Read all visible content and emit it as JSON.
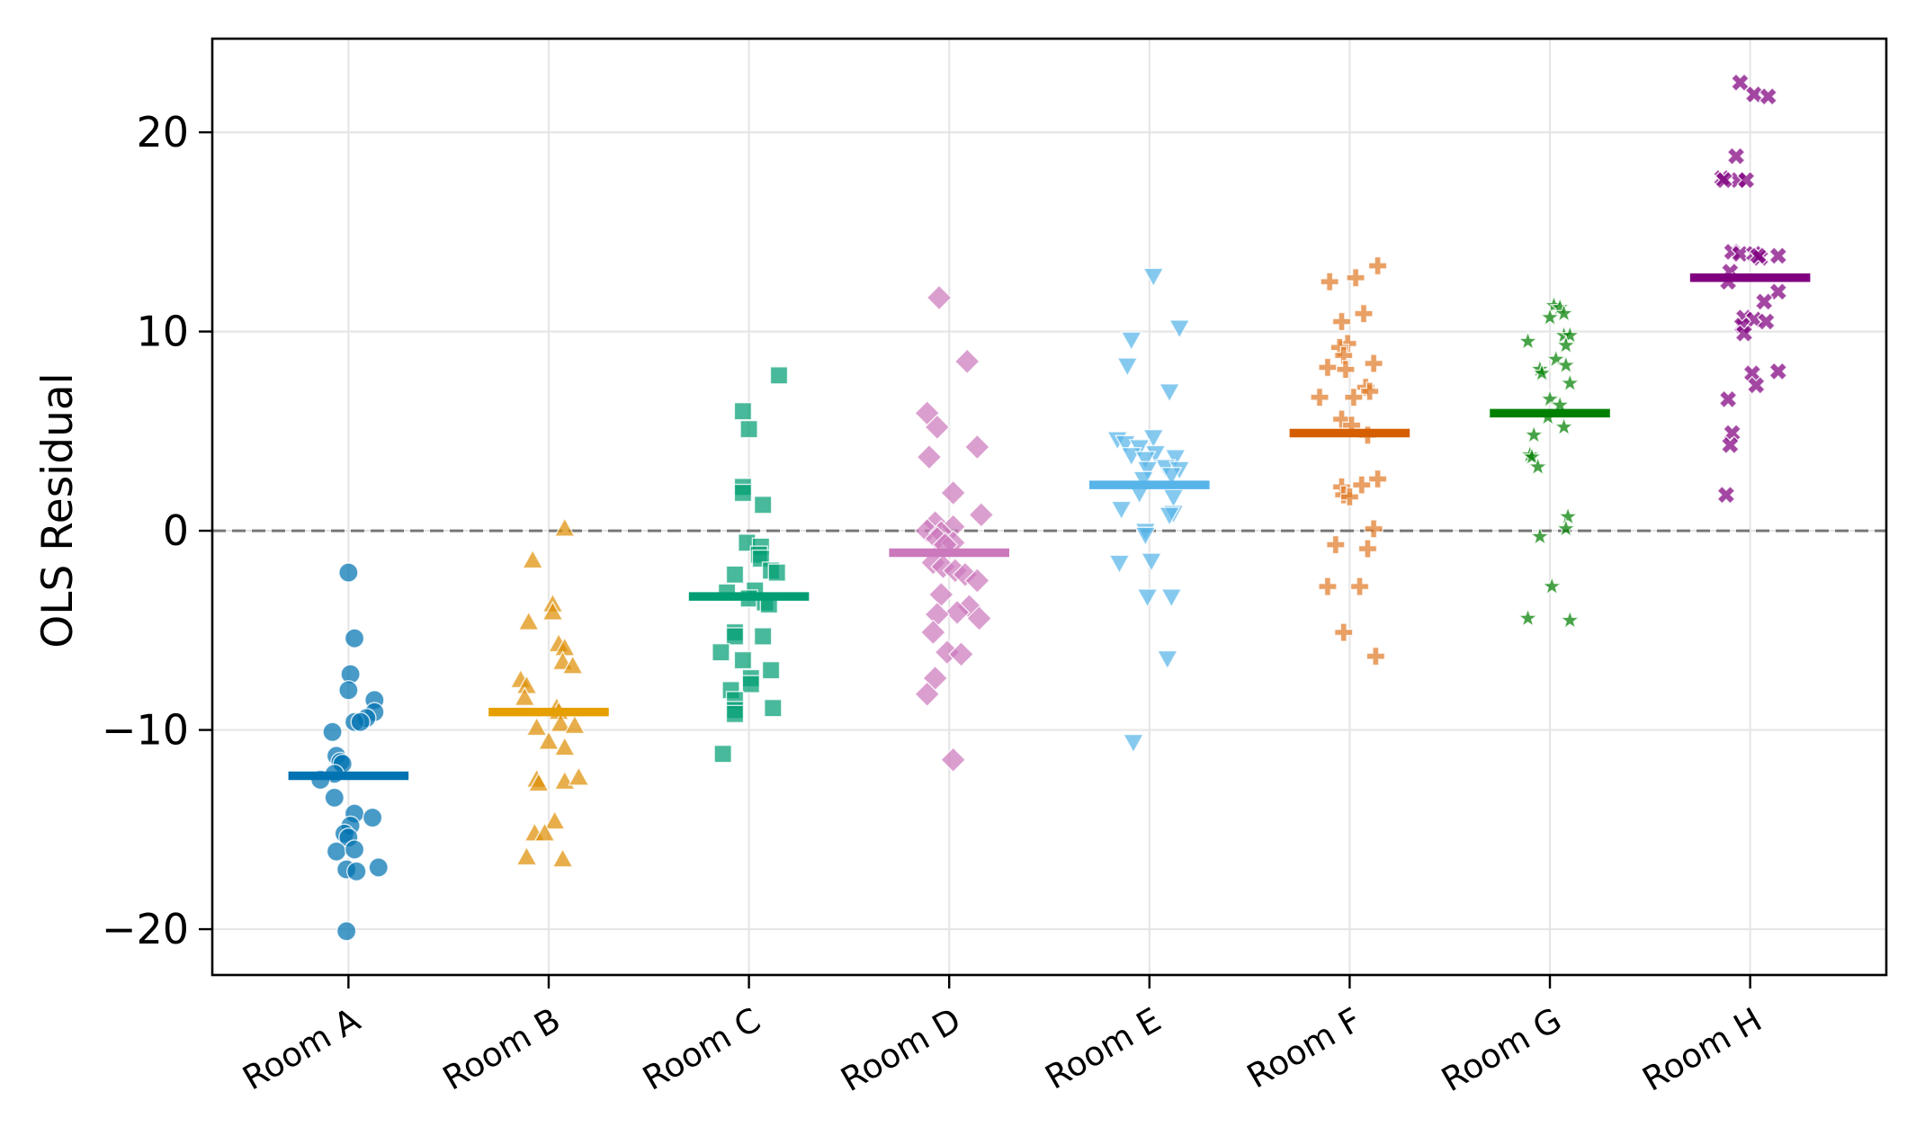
{
  "chart_data": {
    "type": "scatter",
    "subtype": "strip plot with group means",
    "title": "",
    "xlabel": "",
    "ylabel": "OLS Residual",
    "categories": [
      "Room A",
      "Room B",
      "Room C",
      "Room D",
      "Room E",
      "Room F",
      "Room G",
      "Room H"
    ],
    "ylim": [
      -22.3,
      24.7
    ],
    "yticks": [
      -20,
      -10,
      0,
      10,
      20
    ],
    "ytick_labels": [
      "−20",
      "−10",
      "0",
      "10",
      "20"
    ],
    "grid": true,
    "reference_line": {
      "y": 0,
      "style": "dashed",
      "color": "#777777"
    },
    "legend": "none",
    "series": [
      {
        "name": "Room A",
        "marker": "circle",
        "color": "#0173b2",
        "mean_color": "#0173b2",
        "mean": -12.3,
        "points": [
          {
            "dx": -0.0,
            "y": -2.1
          },
          {
            "dx": 0.03,
            "y": -5.4
          },
          {
            "dx": 0.01,
            "y": -7.2
          },
          {
            "dx": 0.0,
            "y": -8.0
          },
          {
            "dx": 0.13,
            "y": -8.5
          },
          {
            "dx": 0.13,
            "y": -9.1
          },
          {
            "dx": 0.09,
            "y": -9.4
          },
          {
            "dx": 0.03,
            "y": -9.6
          },
          {
            "dx": 0.06,
            "y": -9.6
          },
          {
            "dx": -0.08,
            "y": -10.1
          },
          {
            "dx": -0.06,
            "y": -11.3
          },
          {
            "dx": -0.04,
            "y": -11.6
          },
          {
            "dx": -0.03,
            "y": -11.7
          },
          {
            "dx": -0.07,
            "y": -12.2
          },
          {
            "dx": -0.14,
            "y": -12.5
          },
          {
            "dx": -0.07,
            "y": -13.4
          },
          {
            "dx": 0.03,
            "y": -14.2
          },
          {
            "dx": 0.12,
            "y": -14.4
          },
          {
            "dx": 0.01,
            "y": -14.8
          },
          {
            "dx": -0.02,
            "y": -15.2
          },
          {
            "dx": 0.0,
            "y": -15.4
          },
          {
            "dx": -0.06,
            "y": -16.1
          },
          {
            "dx": 0.03,
            "y": -16.0
          },
          {
            "dx": -0.01,
            "y": -17.0
          },
          {
            "dx": 0.04,
            "y": -17.1
          },
          {
            "dx": 0.15,
            "y": -16.9
          },
          {
            "dx": -0.01,
            "y": -20.1
          }
        ]
      },
      {
        "name": "Room B",
        "marker": "triangle-up",
        "color": "#de8f05",
        "mean_color": "#e69f00",
        "mean": -9.1,
        "points": [
          {
            "dx": 0.08,
            "y": 0.1
          },
          {
            "dx": -0.08,
            "y": -1.5
          },
          {
            "dx": 0.02,
            "y": -3.7
          },
          {
            "dx": 0.02,
            "y": -4.1
          },
          {
            "dx": -0.1,
            "y": -4.6
          },
          {
            "dx": 0.05,
            "y": -5.7
          },
          {
            "dx": 0.08,
            "y": -5.9
          },
          {
            "dx": 0.07,
            "y": -6.6
          },
          {
            "dx": 0.12,
            "y": -6.8
          },
          {
            "dx": -0.14,
            "y": -7.5
          },
          {
            "dx": -0.11,
            "y": -7.8
          },
          {
            "dx": -0.12,
            "y": -8.4
          },
          {
            "dx": 0.04,
            "y": -8.9
          },
          {
            "dx": 0.05,
            "y": -9.1
          },
          {
            "dx": 0.06,
            "y": -9.7
          },
          {
            "dx": 0.13,
            "y": -9.8
          },
          {
            "dx": -0.06,
            "y": -9.9
          },
          {
            "dx": 0.0,
            "y": -10.6
          },
          {
            "dx": 0.08,
            "y": -10.9
          },
          {
            "dx": -0.06,
            "y": -12.5
          },
          {
            "dx": -0.05,
            "y": -12.7
          },
          {
            "dx": 0.08,
            "y": -12.6
          },
          {
            "dx": 0.15,
            "y": -12.4
          },
          {
            "dx": 0.03,
            "y": -14.6
          },
          {
            "dx": -0.07,
            "y": -15.2
          },
          {
            "dx": -0.02,
            "y": -15.2
          },
          {
            "dx": -0.11,
            "y": -16.4
          },
          {
            "dx": 0.07,
            "y": -16.5
          }
        ]
      },
      {
        "name": "Room C",
        "marker": "square",
        "color": "#029e73",
        "mean_color": "#029e73",
        "mean": -3.3,
        "points": [
          {
            "dx": 0.15,
            "y": 7.8
          },
          {
            "dx": -0.03,
            "y": 6.0
          },
          {
            "dx": 0.0,
            "y": 5.1
          },
          {
            "dx": -0.03,
            "y": 2.2
          },
          {
            "dx": -0.03,
            "y": 1.9
          },
          {
            "dx": 0.07,
            "y": 1.3
          },
          {
            "dx": -0.01,
            "y": -0.6
          },
          {
            "dx": 0.06,
            "y": -0.8
          },
          {
            "dx": 0.05,
            "y": -1.2
          },
          {
            "dx": 0.06,
            "y": -1.4
          },
          {
            "dx": 0.11,
            "y": -2.0
          },
          {
            "dx": 0.14,
            "y": -2.1
          },
          {
            "dx": -0.07,
            "y": -2.2
          },
          {
            "dx": 0.03,
            "y": -3.0
          },
          {
            "dx": -0.11,
            "y": -3.1
          },
          {
            "dx": 0.0,
            "y": -3.4
          },
          {
            "dx": 0.08,
            "y": -3.6
          },
          {
            "dx": 0.1,
            "y": -3.7
          },
          {
            "dx": -0.07,
            "y": -5.1
          },
          {
            "dx": -0.07,
            "y": -5.3
          },
          {
            "dx": 0.07,
            "y": -5.3
          },
          {
            "dx": -0.14,
            "y": -6.1
          },
          {
            "dx": -0.03,
            "y": -6.5
          },
          {
            "dx": 0.11,
            "y": -7.0
          },
          {
            "dx": 0.01,
            "y": -7.4
          },
          {
            "dx": 0.01,
            "y": -7.7
          },
          {
            "dx": -0.09,
            "y": -8.0
          },
          {
            "dx": -0.07,
            "y": -8.5
          },
          {
            "dx": -0.07,
            "y": -9.0
          },
          {
            "dx": -0.07,
            "y": -9.2
          },
          {
            "dx": 0.12,
            "y": -8.9
          },
          {
            "dx": -0.13,
            "y": -11.2
          }
        ]
      },
      {
        "name": "Room D",
        "marker": "diamond",
        "color": "#cc78bc",
        "mean_color": "#cc78bc",
        "mean": -1.1,
        "points": [
          {
            "dx": -0.05,
            "y": 11.7
          },
          {
            "dx": 0.09,
            "y": 8.5
          },
          {
            "dx": -0.11,
            "y": 5.9
          },
          {
            "dx": -0.06,
            "y": 5.2
          },
          {
            "dx": 0.14,
            "y": 4.2
          },
          {
            "dx": -0.1,
            "y": 3.7
          },
          {
            "dx": 0.02,
            "y": 1.9
          },
          {
            "dx": 0.16,
            "y": 0.8
          },
          {
            "dx": -0.07,
            "y": 0.4
          },
          {
            "dx": 0.02,
            "y": 0.2
          },
          {
            "dx": -0.11,
            "y": 0.0
          },
          {
            "dx": -0.04,
            "y": -0.1
          },
          {
            "dx": -0.06,
            "y": -0.4
          },
          {
            "dx": 0.02,
            "y": -0.6
          },
          {
            "dx": -0.02,
            "y": -0.7
          },
          {
            "dx": -0.08,
            "y": -1.6
          },
          {
            "dx": -0.03,
            "y": -1.8
          },
          {
            "dx": 0.03,
            "y": -2.0
          },
          {
            "dx": 0.08,
            "y": -2.2
          },
          {
            "dx": 0.14,
            "y": -2.5
          },
          {
            "dx": -0.04,
            "y": -3.2
          },
          {
            "dx": 0.1,
            "y": -3.8
          },
          {
            "dx": 0.04,
            "y": -4.1
          },
          {
            "dx": -0.06,
            "y": -4.2
          },
          {
            "dx": 0.15,
            "y": -4.4
          },
          {
            "dx": -0.08,
            "y": -5.1
          },
          {
            "dx": -0.01,
            "y": -6.1
          },
          {
            "dx": 0.06,
            "y": -6.2
          },
          {
            "dx": -0.07,
            "y": -7.4
          },
          {
            "dx": -0.11,
            "y": -8.2
          },
          {
            "dx": 0.02,
            "y": -11.5
          }
        ]
      },
      {
        "name": "Room E",
        "marker": "triangle-down",
        "color": "#56b4e9",
        "mean_color": "#56b4e9",
        "mean": 2.3,
        "points": [
          {
            "dx": 0.02,
            "y": 12.8
          },
          {
            "dx": 0.15,
            "y": 10.2
          },
          {
            "dx": -0.09,
            "y": 9.6
          },
          {
            "dx": -0.11,
            "y": 8.3
          },
          {
            "dx": 0.1,
            "y": 7.0
          },
          {
            "dx": -0.16,
            "y": 4.6
          },
          {
            "dx": 0.02,
            "y": 4.7
          },
          {
            "dx": -0.12,
            "y": 4.4
          },
          {
            "dx": -0.05,
            "y": 4.2
          },
          {
            "dx": 0.03,
            "y": 3.9
          },
          {
            "dx": -0.09,
            "y": 3.8
          },
          {
            "dx": 0.13,
            "y": 3.7
          },
          {
            "dx": -0.02,
            "y": 3.6
          },
          {
            "dx": 0.08,
            "y": 3.2
          },
          {
            "dx": 0.15,
            "y": 3.1
          },
          {
            "dx": -0.01,
            "y": 3.1
          },
          {
            "dx": 0.11,
            "y": 2.8
          },
          {
            "dx": -0.03,
            "y": 2.6
          },
          {
            "dx": -0.05,
            "y": 1.9
          },
          {
            "dx": 0.12,
            "y": 1.7
          },
          {
            "dx": -0.14,
            "y": 1.1
          },
          {
            "dx": 0.12,
            "y": 0.9
          },
          {
            "dx": 0.1,
            "y": 0.8
          },
          {
            "dx": -0.02,
            "y": 0.0
          },
          {
            "dx": -0.02,
            "y": -0.2
          },
          {
            "dx": 0.01,
            "y": -1.5
          },
          {
            "dx": -0.15,
            "y": -1.6
          },
          {
            "dx": -0.01,
            "y": -3.3
          },
          {
            "dx": 0.11,
            "y": -3.3
          },
          {
            "dx": 0.09,
            "y": -6.4
          },
          {
            "dx": -0.08,
            "y": -10.6
          }
        ]
      },
      {
        "name": "Room F",
        "marker": "plus",
        "color": "#de8f05",
        "point_color": "#e07c2a",
        "mean_color": "#d55e00",
        "mean": 4.9,
        "points": [
          {
            "dx": 0.14,
            "y": 13.3
          },
          {
            "dx": 0.03,
            "y": 12.7
          },
          {
            "dx": -0.1,
            "y": 12.5
          },
          {
            "dx": 0.07,
            "y": 10.9
          },
          {
            "dx": -0.04,
            "y": 10.5
          },
          {
            "dx": -0.01,
            "y": 9.4
          },
          {
            "dx": -0.05,
            "y": 9.2
          },
          {
            "dx": -0.03,
            "y": 8.8
          },
          {
            "dx": 0.12,
            "y": 8.4
          },
          {
            "dx": -0.11,
            "y": 8.2
          },
          {
            "dx": -0.02,
            "y": 8.1
          },
          {
            "dx": 0.08,
            "y": 7.2
          },
          {
            "dx": 0.1,
            "y": 7.0
          },
          {
            "dx": -0.15,
            "y": 6.7
          },
          {
            "dx": 0.02,
            "y": 6.7
          },
          {
            "dx": -0.04,
            "y": 5.6
          },
          {
            "dx": 0.01,
            "y": 5.3
          },
          {
            "dx": 0.09,
            "y": 4.8
          },
          {
            "dx": 0.14,
            "y": 2.6
          },
          {
            "dx": 0.06,
            "y": 2.3
          },
          {
            "dx": -0.04,
            "y": 2.2
          },
          {
            "dx": -0.03,
            "y": 1.8
          },
          {
            "dx": 0.0,
            "y": 1.7
          },
          {
            "dx": 0.12,
            "y": 0.1
          },
          {
            "dx": -0.07,
            "y": -0.7
          },
          {
            "dx": 0.09,
            "y": -0.9
          },
          {
            "dx": -0.11,
            "y": -2.8
          },
          {
            "dx": 0.05,
            "y": -2.8
          },
          {
            "dx": -0.03,
            "y": -5.1
          },
          {
            "dx": 0.13,
            "y": -6.3
          }
        ]
      },
      {
        "name": "Room G",
        "marker": "star",
        "color": "#008000",
        "mean_color": "#008000",
        "mean": 5.9,
        "points": [
          {
            "dx": 0.02,
            "y": 11.3
          },
          {
            "dx": 0.05,
            "y": 11.2
          },
          {
            "dx": 0.07,
            "y": 10.9
          },
          {
            "dx": 0.0,
            "y": 10.7
          },
          {
            "dx": 0.07,
            "y": 9.8
          },
          {
            "dx": 0.1,
            "y": 9.8
          },
          {
            "dx": -0.11,
            "y": 9.5
          },
          {
            "dx": 0.08,
            "y": 9.3
          },
          {
            "dx": 0.03,
            "y": 8.6
          },
          {
            "dx": 0.08,
            "y": 8.3
          },
          {
            "dx": -0.05,
            "y": 8.1
          },
          {
            "dx": -0.04,
            "y": 7.9
          },
          {
            "dx": 0.1,
            "y": 7.4
          },
          {
            "dx": 0.0,
            "y": 6.6
          },
          {
            "dx": 0.05,
            "y": 6.3
          },
          {
            "dx": -0.01,
            "y": 5.7
          },
          {
            "dx": 0.07,
            "y": 5.2
          },
          {
            "dx": -0.08,
            "y": 4.8
          },
          {
            "dx": -0.1,
            "y": 3.8
          },
          {
            "dx": -0.09,
            "y": 3.7
          },
          {
            "dx": -0.06,
            "y": 3.2
          },
          {
            "dx": 0.09,
            "y": 0.7
          },
          {
            "dx": 0.08,
            "y": 0.1
          },
          {
            "dx": -0.05,
            "y": -0.3
          },
          {
            "dx": 0.01,
            "y": -2.8
          },
          {
            "dx": -0.11,
            "y": -4.4
          },
          {
            "dx": 0.1,
            "y": -4.5
          }
        ]
      },
      {
        "name": "Room H",
        "marker": "x",
        "color": "#800080",
        "mean_color": "#800080",
        "mean": 12.7,
        "points": [
          {
            "dx": -0.05,
            "y": 22.5
          },
          {
            "dx": 0.02,
            "y": 21.9
          },
          {
            "dx": 0.09,
            "y": 21.8
          },
          {
            "dx": -0.07,
            "y": 18.8
          },
          {
            "dx": -0.14,
            "y": 17.7
          },
          {
            "dx": -0.06,
            "y": 17.6
          },
          {
            "dx": -0.02,
            "y": 17.6
          },
          {
            "dx": -0.13,
            "y": 17.6
          },
          {
            "dx": -0.09,
            "y": 14.0
          },
          {
            "dx": -0.05,
            "y": 13.9
          },
          {
            "dx": 0.02,
            "y": 13.9
          },
          {
            "dx": 0.05,
            "y": 13.7
          },
          {
            "dx": 0.14,
            "y": 13.8
          },
          {
            "dx": 0.04,
            "y": 13.8
          },
          {
            "dx": -0.1,
            "y": 13.0
          },
          {
            "dx": -0.11,
            "y": 12.5
          },
          {
            "dx": 0.14,
            "y": 12.0
          },
          {
            "dx": 0.07,
            "y": 11.5
          },
          {
            "dx": -0.03,
            "y": 10.7
          },
          {
            "dx": 0.02,
            "y": 10.6
          },
          {
            "dx": 0.08,
            "y": 10.5
          },
          {
            "dx": -0.04,
            "y": 10.3
          },
          {
            "dx": -0.03,
            "y": 9.9
          },
          {
            "dx": 0.01,
            "y": 7.9
          },
          {
            "dx": 0.14,
            "y": 8.0
          },
          {
            "dx": 0.03,
            "y": 7.3
          },
          {
            "dx": -0.11,
            "y": 6.6
          },
          {
            "dx": -0.09,
            "y": 4.9
          },
          {
            "dx": -0.1,
            "y": 4.3
          },
          {
            "dx": -0.12,
            "y": 1.8
          }
        ]
      }
    ]
  }
}
